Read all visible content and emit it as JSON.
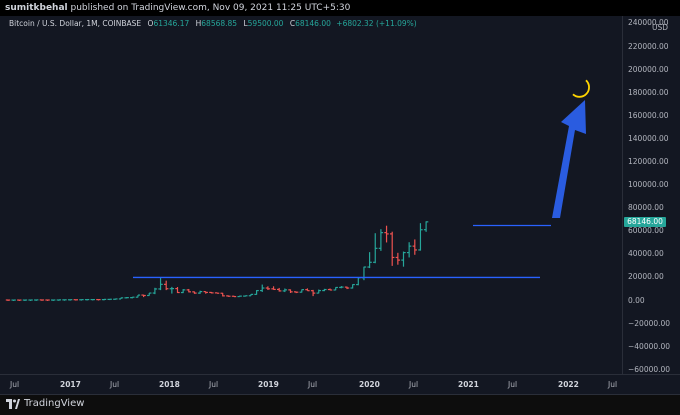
{
  "header": {
    "publisher": "sumitkbehal",
    "published_text": "published on TradingView.com, Nov 09, 2021 11:25 UTC+5:30"
  },
  "legend": {
    "symbol": "Bitcoin / U.S. Dollar, 1M, COINBASE",
    "open_label": "O",
    "open": "61346.17",
    "high_label": "H",
    "high": "68568.85",
    "low_label": "L",
    "low": "59500.00",
    "close_label": "C",
    "close": "68146.00",
    "change": "+6802.32 (+11.09%)"
  },
  "currency": "USD",
  "last_price": "68146.00",
  "price_ticks": [
    "240000.00",
    "220000.00",
    "200000.00",
    "180000.00",
    "160000.00",
    "140000.00",
    "120000.00",
    "100000.00",
    "80000.00",
    "60000.00",
    "40000.00",
    "20000.00",
    "0.00",
    "−20000.00",
    "−40000.00",
    "−60000.00"
  ],
  "time_ticks": [
    {
      "label": "Jul",
      "bold": false
    },
    {
      "label": "2017",
      "bold": true
    },
    {
      "label": "Jul",
      "bold": false
    },
    {
      "label": "2018",
      "bold": true
    },
    {
      "label": "Jul",
      "bold": false
    },
    {
      "label": "2019",
      "bold": true
    },
    {
      "label": "Jul",
      "bold": false
    },
    {
      "label": "2020",
      "bold": true
    },
    {
      "label": "Jul",
      "bold": false
    },
    {
      "label": "2021",
      "bold": true
    },
    {
      "label": "Jul",
      "bold": false
    },
    {
      "label": "2022",
      "bold": true
    },
    {
      "label": "Jul",
      "bold": false
    }
  ],
  "footer": {
    "brand": "TradingView"
  },
  "colors": {
    "up": "#26a69a",
    "down": "#ef5350",
    "line": "#2962ff",
    "arrow": "#2a5ce0",
    "moon": "#ffd400"
  },
  "drawings": {
    "resistance_level": 20000,
    "range_top": 65000,
    "range_bottom": 20000,
    "arrow_target": 165000,
    "moon_icon": "crescent-moon-icon"
  },
  "chart_data": {
    "type": "ohlc",
    "timeframe": "1M",
    "ylim": [
      -60000,
      240000
    ],
    "points": [
      {
        "o": 430,
        "c": 370,
        "h": 480,
        "l": 360
      },
      {
        "o": 370,
        "c": 390,
        "h": 420,
        "l": 350
      },
      {
        "o": 390,
        "c": 375,
        "h": 420,
        "l": 360
      },
      {
        "o": 375,
        "c": 410,
        "h": 420,
        "l": 370
      },
      {
        "o": 410,
        "c": 440,
        "h": 460,
        "l": 400
      },
      {
        "o": 440,
        "c": 530,
        "h": 540,
        "l": 420
      },
      {
        "o": 530,
        "c": 450,
        "h": 540,
        "l": 440
      },
      {
        "o": 450,
        "c": 420,
        "h": 460,
        "l": 410
      },
      {
        "o": 420,
        "c": 440,
        "h": 460,
        "l": 410
      },
      {
        "o": 440,
        "c": 570,
        "h": 575,
        "l": 440
      },
      {
        "o": 570,
        "c": 610,
        "h": 620,
        "l": 560
      },
      {
        "o": 610,
        "c": 700,
        "h": 715,
        "l": 590
      },
      {
        "o": 700,
        "c": 620,
        "h": 770,
        "l": 590
      },
      {
        "o": 620,
        "c": 740,
        "h": 760,
        "l": 600
      },
      {
        "o": 740,
        "c": 800,
        "h": 840,
        "l": 740
      },
      {
        "o": 800,
        "c": 800,
        "h": 890,
        "l": 730
      },
      {
        "o": 800,
        "c": 770,
        "h": 850,
        "l": 690
      },
      {
        "o": 770,
        "c": 950,
        "h": 970,
        "l": 750
      },
      {
        "o": 950,
        "c": 1080,
        "h": 1220,
        "l": 890
      },
      {
        "o": 1080,
        "c": 1350,
        "h": 1500,
        "l": 1000
      },
      {
        "o": 1350,
        "c": 2300,
        "h": 2500,
        "l": 1300
      },
      {
        "o": 2300,
        "c": 2480,
        "h": 3000,
        "l": 1850
      },
      {
        "o": 2480,
        "c": 2870,
        "h": 2900,
        "l": 1830
      },
      {
        "o": 2870,
        "c": 4700,
        "h": 4750,
        "l": 2700
      },
      {
        "o": 4700,
        "c": 4340,
        "h": 5000,
        "l": 2950
      },
      {
        "o": 4340,
        "c": 6450,
        "h": 6500,
        "l": 4200
      },
      {
        "o": 6450,
        "c": 10000,
        "h": 11000,
        "l": 5500
      },
      {
        "o": 10000,
        "c": 14000,
        "h": 19800,
        "l": 9000
      },
      {
        "o": 14000,
        "c": 10200,
        "h": 17200,
        "l": 9000
      },
      {
        "o": 10200,
        "c": 10300,
        "h": 11800,
        "l": 6000
      },
      {
        "o": 10300,
        "c": 6900,
        "h": 11700,
        "l": 6500
      },
      {
        "o": 6900,
        "c": 9200,
        "h": 9900,
        "l": 6400
      },
      {
        "o": 9200,
        "c": 7500,
        "h": 10000,
        "l": 7000
      },
      {
        "o": 7500,
        "c": 6400,
        "h": 7800,
        "l": 5800
      },
      {
        "o": 6400,
        "c": 7700,
        "h": 8500,
        "l": 5800
      },
      {
        "o": 7700,
        "c": 7000,
        "h": 7800,
        "l": 5900
      },
      {
        "o": 7000,
        "c": 6600,
        "h": 7400,
        "l": 6100
      },
      {
        "o": 6600,
        "c": 6300,
        "h": 7000,
        "l": 6100
      },
      {
        "o": 6300,
        "c": 4000,
        "h": 6600,
        "l": 3500
      },
      {
        "o": 4000,
        "c": 3700,
        "h": 4400,
        "l": 3200
      },
      {
        "o": 3700,
        "c": 3400,
        "h": 4100,
        "l": 3300
      },
      {
        "o": 3400,
        "c": 3800,
        "h": 4200,
        "l": 3300
      },
      {
        "o": 3800,
        "c": 4100,
        "h": 4200,
        "l": 3700
      },
      {
        "o": 4100,
        "c": 5300,
        "h": 5500,
        "l": 4100
      },
      {
        "o": 5300,
        "c": 8600,
        "h": 9000,
        "l": 5000
      },
      {
        "o": 8600,
        "c": 10800,
        "h": 13800,
        "l": 7400
      },
      {
        "o": 10800,
        "c": 10100,
        "h": 12300,
        "l": 9100
      },
      {
        "o": 10100,
        "c": 9600,
        "h": 12300,
        "l": 9300
      },
      {
        "o": 9600,
        "c": 8300,
        "h": 10900,
        "l": 7700
      },
      {
        "o": 8300,
        "c": 9200,
        "h": 10400,
        "l": 7300
      },
      {
        "o": 9200,
        "c": 7500,
        "h": 9600,
        "l": 6500
      },
      {
        "o": 7500,
        "c": 7200,
        "h": 7800,
        "l": 6400
      },
      {
        "o": 7200,
        "c": 9400,
        "h": 9600,
        "l": 6900
      },
      {
        "o": 9400,
        "c": 8500,
        "h": 10500,
        "l": 8400
      },
      {
        "o": 8500,
        "c": 6400,
        "h": 9200,
        "l": 3800
      },
      {
        "o": 6400,
        "c": 8600,
        "h": 9500,
        "l": 6200
      },
      {
        "o": 8600,
        "c": 9500,
        "h": 10100,
        "l": 8100
      },
      {
        "o": 9500,
        "c": 9100,
        "h": 10400,
        "l": 8900
      },
      {
        "o": 9100,
        "c": 11300,
        "h": 11500,
        "l": 8900
      },
      {
        "o": 11300,
        "c": 11600,
        "h": 12500,
        "l": 10600
      },
      {
        "o": 11600,
        "c": 10800,
        "h": 12100,
        "l": 9900
      },
      {
        "o": 10800,
        "c": 13800,
        "h": 14000,
        "l": 10400
      },
      {
        "o": 13800,
        "c": 19700,
        "h": 19900,
        "l": 13200
      },
      {
        "o": 19700,
        "c": 29000,
        "h": 29300,
        "l": 17600
      },
      {
        "o": 29000,
        "c": 33100,
        "h": 41900,
        "l": 28100
      },
      {
        "o": 33100,
        "c": 45200,
        "h": 58300,
        "l": 32300
      },
      {
        "o": 45200,
        "c": 58800,
        "h": 61800,
        "l": 43000
      },
      {
        "o": 58800,
        "c": 57700,
        "h": 64800,
        "l": 50300
      },
      {
        "o": 57700,
        "c": 37300,
        "h": 59600,
        "l": 30000
      },
      {
        "o": 37300,
        "c": 35000,
        "h": 41300,
        "l": 31000
      },
      {
        "o": 35000,
        "c": 41500,
        "h": 42400,
        "l": 29300
      },
      {
        "o": 41500,
        "c": 47100,
        "h": 50500,
        "l": 37300
      },
      {
        "o": 47100,
        "c": 43800,
        "h": 52900,
        "l": 39600
      },
      {
        "o": 43800,
        "c": 61300,
        "h": 67000,
        "l": 43200
      },
      {
        "o": 61346,
        "c": 68146,
        "h": 68569,
        "l": 59500
      }
    ]
  }
}
